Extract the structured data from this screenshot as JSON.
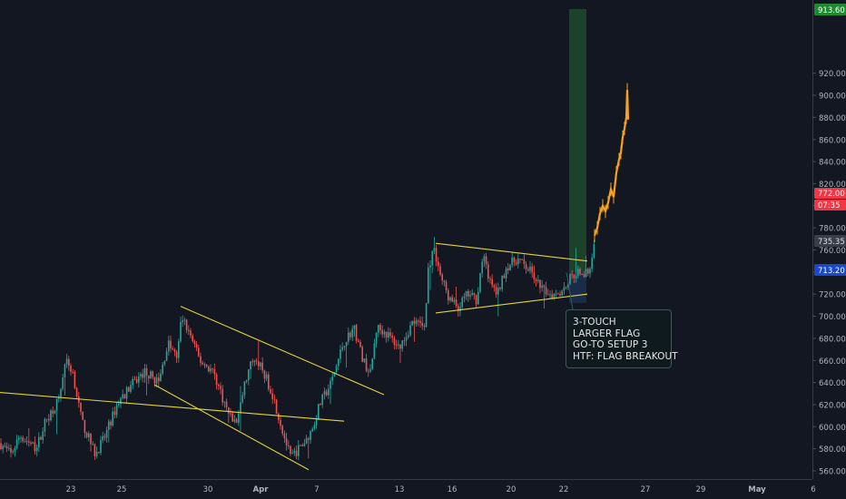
{
  "chart_data": {
    "type": "candlestick",
    "title": "",
    "xlabel": "",
    "ylabel": "",
    "ylim": [
      552,
      924
    ],
    "y_ticks": [
      "560.00",
      "580.00",
      "600.00",
      "620.00",
      "640.00",
      "660.00",
      "680.00",
      "700.00",
      "720.00",
      "740.00",
      "760.00",
      "780.00",
      "800.00",
      "820.00",
      "840.00",
      "860.00",
      "880.00",
      "900.00",
      "920.00"
    ],
    "x_ticks": [
      "23",
      "25",
      "30",
      "Apr",
      "7",
      "13",
      "16",
      "20",
      "22",
      "27",
      "29",
      "May",
      "6"
    ],
    "price_labels": {
      "top": "913.60",
      "last_price": "772.00",
      "countdown": "07:35",
      "level_1": "735.35",
      "level_2": "713.20"
    },
    "projection_color": "#f7a21b",
    "trendlines": [
      {
        "name": "horizontal-support",
        "from": [
          "Mar 20",
          631
        ],
        "to": [
          "Apr 9",
          605
        ]
      },
      {
        "name": "falling-wedge-upper",
        "from": [
          "Mar 28",
          709
        ],
        "to": [
          "Apr 12",
          629
        ]
      },
      {
        "name": "falling-wedge-lower",
        "from": [
          "Mar 26",
          638
        ],
        "to": [
          "Apr 6",
          561
        ]
      },
      {
        "name": "flag-upper",
        "from": [
          "Apr 15",
          766
        ],
        "to": [
          "Apr 23",
          750
        ]
      },
      {
        "name": "flag-lower",
        "from": [
          "Apr 15",
          703
        ],
        "to": [
          "Apr 23",
          720
        ]
      }
    ],
    "annotation": [
      "3-TOUCH",
      "LARGER FLAG",
      "GO-TO SETUP 3",
      "HTF: FLAG BREAKOUT"
    ],
    "colors": {
      "up": "#26a69a",
      "down": "#ef5350",
      "line": "#e3d33d",
      "bg": "#131722"
    }
  }
}
